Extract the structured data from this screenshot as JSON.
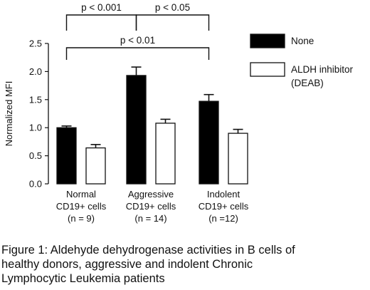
{
  "chart_data": {
    "type": "bar",
    "ylabel": "Normalized MFI",
    "ylim": [
      0,
      2.5
    ],
    "yticks": [
      0.0,
      0.5,
      1.0,
      1.5,
      2.0,
      2.5
    ],
    "ytick_labels": [
      "0.0",
      "0.5",
      "1.0",
      "1.5",
      "2.0",
      "2.5"
    ],
    "categories": [
      [
        "Normal",
        "CD19+ cells",
        "(n = 9)"
      ],
      [
        "Aggressive",
        "CD19+ cells",
        "(n = 14)"
      ],
      [
        "Indolent",
        "CD19+ cells",
        "(n =12)"
      ]
    ],
    "series": [
      {
        "name": "None",
        "color": "#000000",
        "values": [
          1.0,
          1.93,
          1.47
        ],
        "errors": [
          0.03,
          0.15,
          0.12
        ]
      },
      {
        "name": "ALDH inhibitor (DEAB)",
        "color": "#ffffff",
        "values": [
          0.64,
          1.08,
          0.9
        ],
        "errors": [
          0.06,
          0.07,
          0.07
        ]
      }
    ],
    "legend": {
      "placement": "right",
      "entries": [
        {
          "lines": [
            "None"
          ],
          "series": 0
        },
        {
          "lines": [
            "ALDH inhibitor",
            "(DEAB)"
          ],
          "series": 1
        }
      ]
    },
    "significance": [
      {
        "label": "p < 0.001",
        "from": 0,
        "to": 1
      },
      {
        "label": "p < 0.05",
        "from": 1,
        "to": 2
      },
      {
        "label": "p < 0.01",
        "from": 0,
        "to": 2
      }
    ]
  },
  "caption": [
    "Figure 1: Aldehyde dehydrogenase activities in B cells of",
    "healthy donors, aggressive and indolent Chronic",
    "Lymphocytic Leukemia patients"
  ]
}
